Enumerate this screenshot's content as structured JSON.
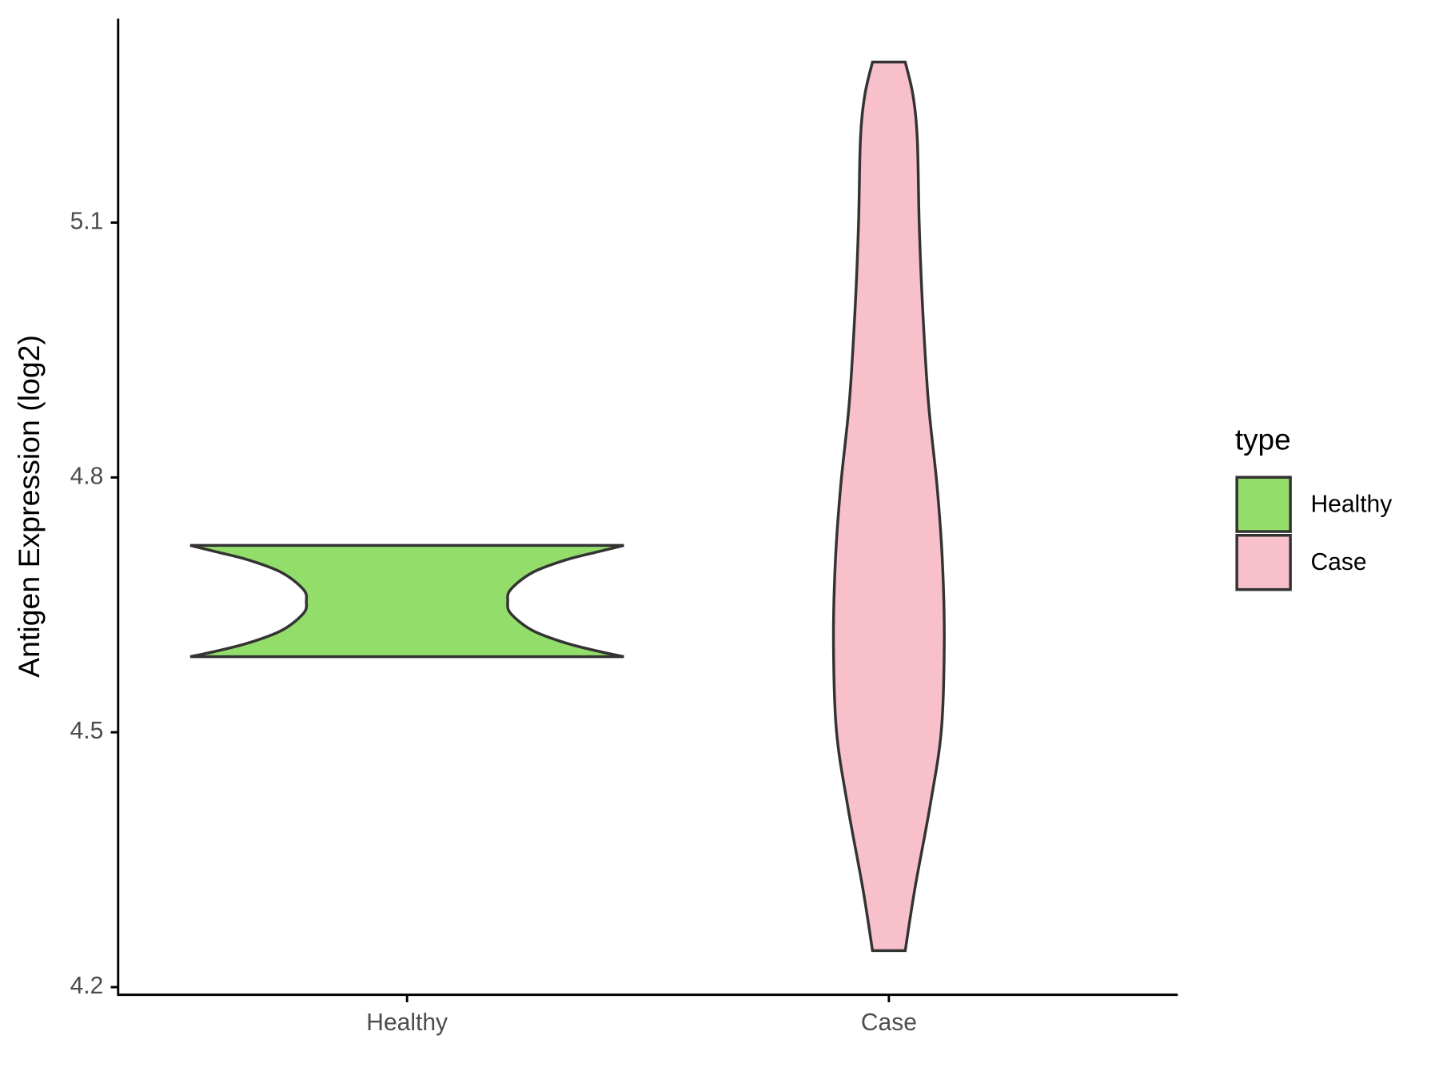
{
  "chart_data": {
    "type": "violin",
    "y_label": "Antigen Expression (log2)",
    "categories": [
      "Healthy",
      "Case"
    ],
    "legend_title": "type",
    "ylim": [
      4.191,
      5.34
    ],
    "yticks": [
      4.2,
      4.5,
      4.8,
      5.1
    ],
    "series": [
      {
        "name": "Healthy",
        "color": "#93dd6a",
        "y": [
          4.589,
          4.595,
          4.605,
          4.62,
          4.64,
          4.654,
          4.668,
          4.688,
          4.703,
          4.713,
          4.72
        ],
        "widths": [
          0.45,
          0.4,
          0.33,
          0.26,
          0.215,
          0.209,
          0.215,
          0.26,
          0.33,
          0.4,
          0.45
        ]
      },
      {
        "name": "Case",
        "color": "#f8c0cb",
        "y": [
          4.243,
          4.316,
          4.415,
          4.503,
          4.608,
          4.702,
          4.79,
          4.889,
          5.0,
          5.098,
          5.198,
          5.25,
          5.289
        ],
        "widths": [
          0.034,
          0.054,
          0.086,
          0.109,
          0.115,
          0.111,
          0.1,
          0.082,
          0.07,
          0.063,
          0.059,
          0.05,
          0.034
        ]
      }
    ]
  }
}
